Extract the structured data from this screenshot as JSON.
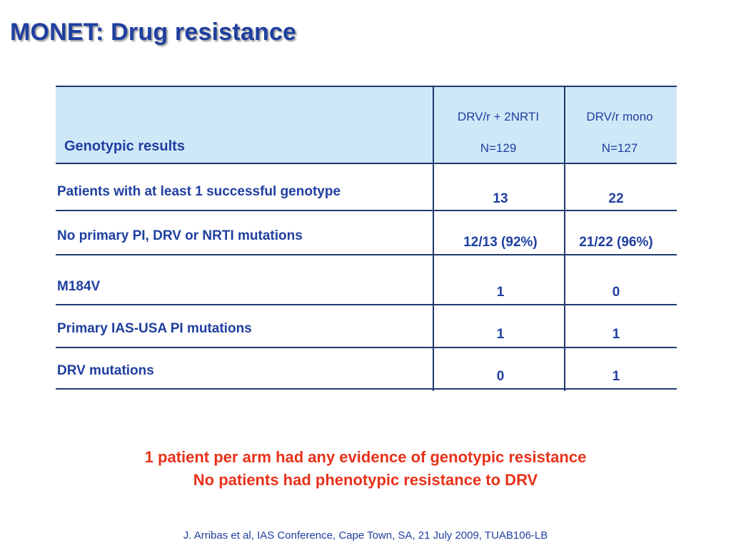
{
  "title": "MONET: Drug resistance",
  "table": {
    "header_label": "Genotypic results",
    "columns": [
      {
        "name": "DRV/r + 2NRTI",
        "n": "N=129"
      },
      {
        "name": "DRV/r mono",
        "n": "N=127"
      }
    ],
    "rows": [
      {
        "label": "Patients with at least 1 successful genotype",
        "values": [
          "13",
          "22"
        ]
      },
      {
        "label": "No primary PI, DRV or NRTI mutations",
        "values": [
          "12/13 (92%)",
          "21/22 (96%)"
        ]
      },
      {
        "label": "M184V",
        "values": [
          "1",
          "0"
        ]
      },
      {
        "label": "Primary IAS-USA PI mutations",
        "values": [
          "1",
          "1"
        ]
      },
      {
        "label": "DRV mutations",
        "values": [
          "0",
          "1"
        ]
      }
    ]
  },
  "notes": [
    "1 patient per arm had any evidence of genotypic resistance",
    "No patients had phenotypic resistance to DRV"
  ],
  "citation": "J. Arribas et al, IAS Conference, Cape Town, SA, 21 July 2009, TUAB106-LB",
  "colors": {
    "title": "#1f3fa0",
    "header_bg": "#cfe8f8",
    "note": "#e8311a",
    "rule": "#1f3a6e"
  }
}
